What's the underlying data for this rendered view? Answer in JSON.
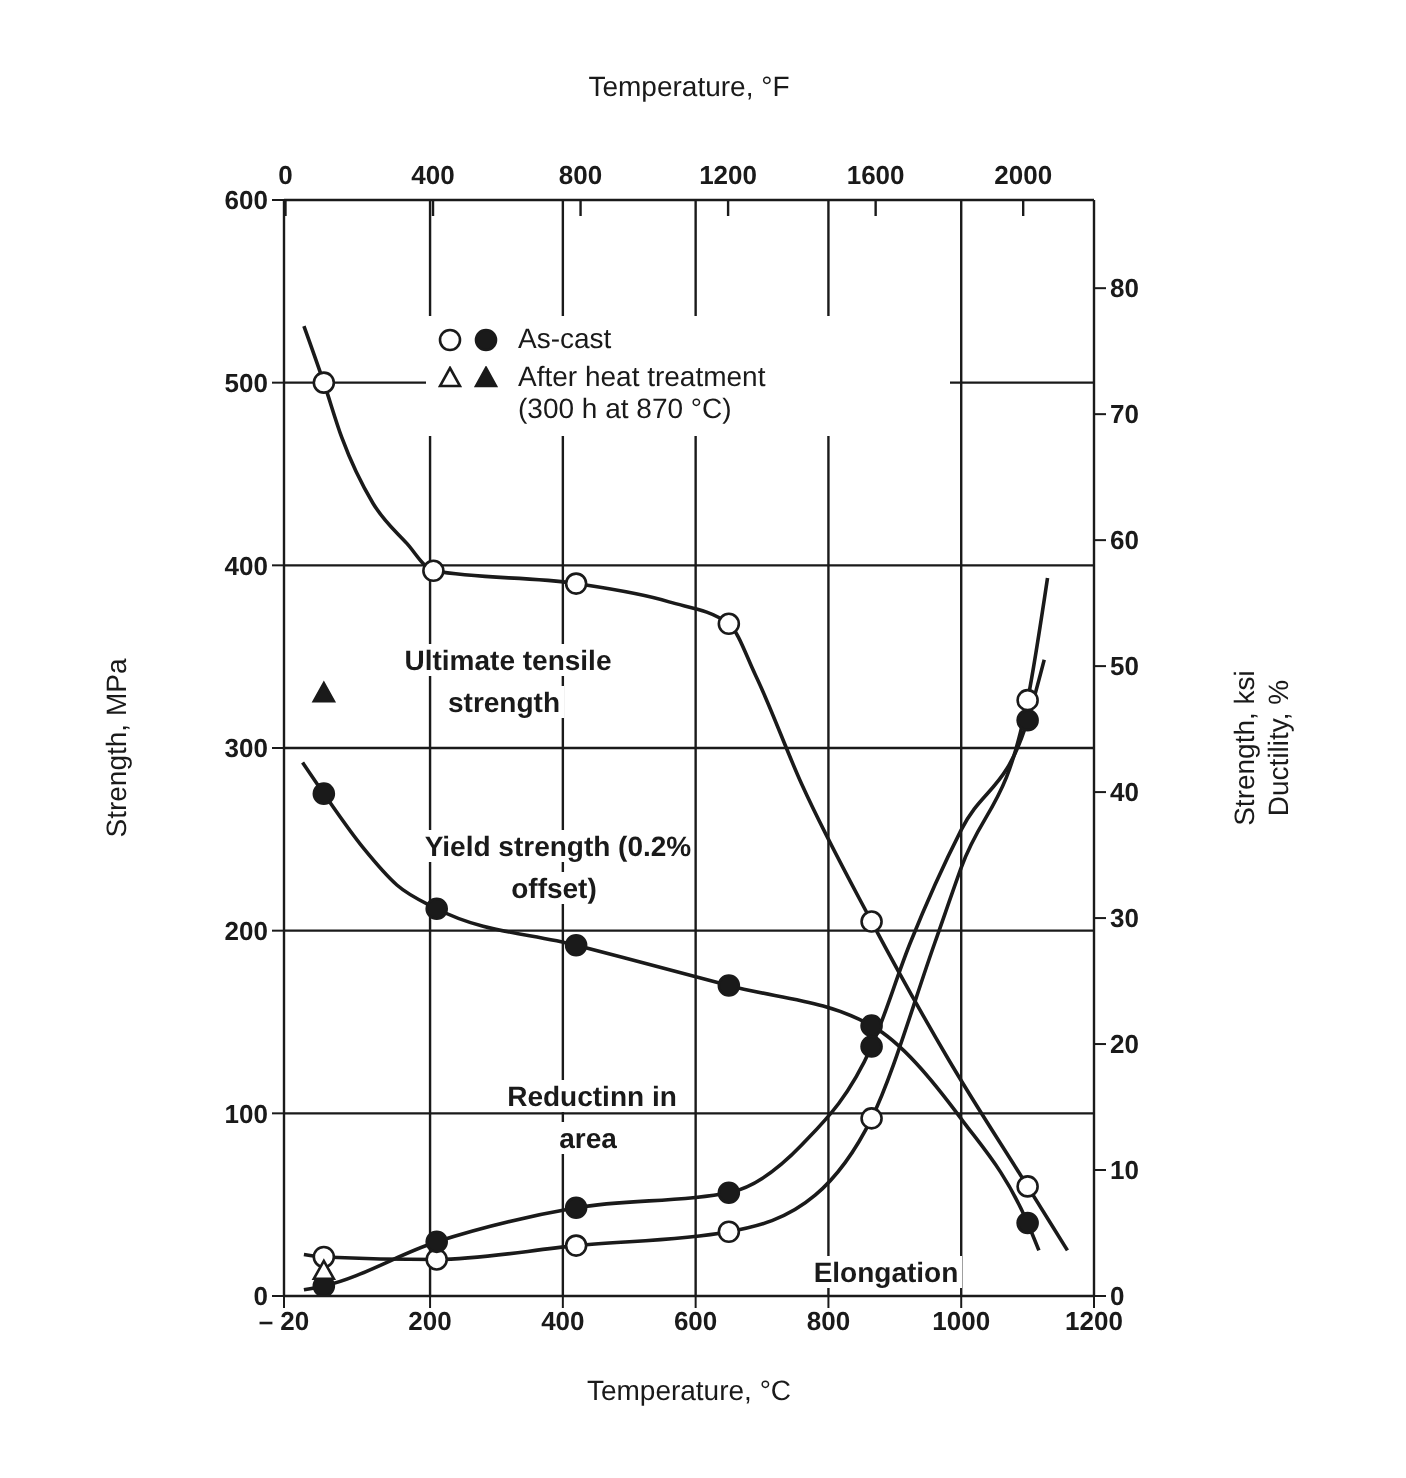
{
  "chart_data": {
    "type": "line",
    "xlabel": "Temperature, °C",
    "x2label": "Temperature, °F",
    "ylabel": "Strength, MPa",
    "y2label": "Strength, ksi\nDuctility, %",
    "xlim": [
      -20,
      1200
    ],
    "xticks": [
      {
        "value": -20,
        "label": "– 20"
      },
      200,
      400,
      600,
      800,
      1000,
      1200
    ],
    "x2lim": [
      -4,
      2192
    ],
    "x2ticks": [
      0,
      400,
      800,
      1200,
      1600,
      2000
    ],
    "ylim": [
      0,
      600
    ],
    "yticks": [
      0,
      100,
      200,
      300,
      400,
      500,
      600
    ],
    "y2lim": [
      0,
      87
    ],
    "y2ticks": [
      0,
      10,
      20,
      30,
      40,
      50,
      60,
      70,
      80
    ],
    "grid": true,
    "legend": "top",
    "line_style": "solid",
    "series": [
      {
        "name": "Ultimate tensile strength",
        "marker": "none",
        "color": "#1a1a1a",
        "x": [
          10,
          40,
          67,
          114,
          165,
          205,
          420,
          560,
          650,
          690,
          760,
          865,
          980,
          1100,
          1160
        ],
        "values": [
          531,
          500,
          470,
          434,
          412,
          397,
          390,
          380,
          368,
          340,
          280,
          205,
          130,
          60,
          25
        ]
      },
      {
        "name": "Yield strength (0.2% offset)",
        "marker": "none",
        "color": "#1a1a1a",
        "x": [
          8,
          40,
          100,
          150,
          210,
          420,
          650,
          865,
          1000,
          1100,
          1117
        ],
        "values": [
          292,
          275,
          245,
          225,
          212,
          192,
          170,
          148,
          97,
          40,
          25
        ]
      },
      {
        "name": "Reductinn in area",
        "marker": "none",
        "color": "#1a1a1a",
        "axis": "y2",
        "x": [
          10,
          40,
          210,
          420,
          650,
          760,
          865,
          923,
          1000,
          1100,
          1125
        ],
        "values": [
          0.5,
          0.8,
          4.3,
          7,
          8.2,
          12,
          19.8,
          28,
          37,
          45.7,
          50.5
        ]
      },
      {
        "name": "Elongation",
        "marker": "none",
        "color": "#1a1a1a",
        "axis": "y2",
        "x": [
          10,
          40,
          210,
          420,
          650,
          780,
          865,
          960,
          1000,
          1100,
          1130
        ],
        "values": [
          3.3,
          3.1,
          2.9,
          4,
          5.1,
          8,
          14.1,
          28,
          34,
          47.3,
          57
        ]
      },
      {
        "name": "As-cast",
        "type": "scatter",
        "marker": "circle",
        "color": "#1a1a1a",
        "x": [
          40,
          210,
          420,
          650,
          865,
          1100
        ],
        "values": [
          275,
          212,
          192,
          170,
          148,
          40
        ]
      },
      {
        "type": "scatter",
        "marker": "circle",
        "color": "#ffffff",
        "x": [
          40,
          205,
          420,
          650,
          865,
          1100
        ],
        "values": [
          500,
          397,
          390,
          368,
          205,
          60
        ]
      },
      {
        "type": "scatter",
        "marker": "circle",
        "color": "#ffffff",
        "axis": "y2",
        "x": [
          40,
          210,
          420,
          650,
          865,
          1100
        ],
        "values": [
          3.1,
          2.9,
          4,
          5.1,
          14.1,
          47.3
        ]
      },
      {
        "type": "scatter",
        "marker": "circle",
        "color": "#1a1a1a",
        "axis": "y2",
        "x": [
          40,
          210,
          420,
          650,
          865,
          1100
        ],
        "values": [
          0.8,
          4.3,
          7,
          8.2,
          19.8,
          45.7
        ]
      },
      {
        "name": "After heat treatment (300 h at 870 °C)",
        "type": "scatter",
        "marker": "triangle",
        "color": "#1a1a1a",
        "x": [
          40
        ],
        "values": [
          330
        ]
      },
      {
        "type": "scatter",
        "marker": "triangle",
        "color": "#ffffff",
        "axis": "y2",
        "x": [
          40
        ],
        "values": [
          2
        ]
      }
    ]
  }
}
